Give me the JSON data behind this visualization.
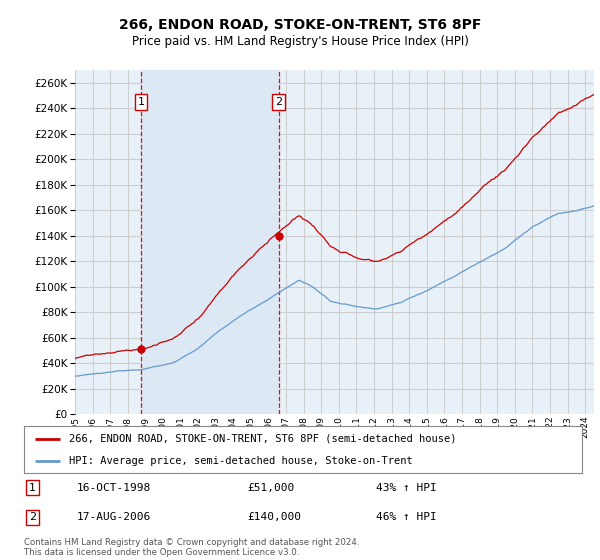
{
  "title": "266, ENDON ROAD, STOKE-ON-TRENT, ST6 8PF",
  "subtitle": "Price paid vs. HM Land Registry's House Price Index (HPI)",
  "yticks": [
    0,
    20000,
    40000,
    60000,
    80000,
    100000,
    120000,
    140000,
    160000,
    180000,
    200000,
    220000,
    240000,
    260000
  ],
  "ylim": [
    0,
    270000
  ],
  "sale1_price": 51000,
  "sale1_label": "16-OCT-1998",
  "sale1_pct": "43% ↑ HPI",
  "sale2_price": 140000,
  "sale2_label": "17-AUG-2006",
  "sale2_pct": "46% ↑ HPI",
  "sale1_year": 1998,
  "sale1_month": 10,
  "sale2_year": 2006,
  "sale2_month": 8,
  "red_line_color": "#cc0000",
  "blue_line_color": "#6699cc",
  "shade_color": "#dde8f5",
  "vline_color": "#cc0000",
  "grid_color": "#cccccc",
  "bg_color": "#ffffff",
  "plot_bg_color": "#e8f0f8",
  "legend1_label": "266, ENDON ROAD, STOKE-ON-TRENT, ST6 8PF (semi-detached house)",
  "legend2_label": "HPI: Average price, semi-detached house, Stoke-on-Trent",
  "footer": "Contains HM Land Registry data © Crown copyright and database right 2024.\nThis data is licensed under the Open Government Licence v3.0.",
  "xtick_years": [
    1995,
    1996,
    1997,
    1998,
    1999,
    2000,
    2001,
    2002,
    2003,
    2004,
    2005,
    2006,
    2007,
    2008,
    2009,
    2010,
    2011,
    2012,
    2013,
    2014,
    2015,
    2016,
    2017,
    2018,
    2019,
    2020,
    2021,
    2022,
    2023,
    2024
  ],
  "xlim_start": 1995.0,
  "xlim_end": 2024.5
}
